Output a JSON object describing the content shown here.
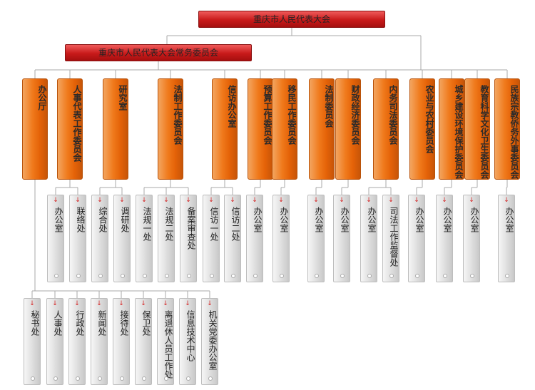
{
  "title": "重庆市人民代表大会",
  "standing_committee": "重庆市人民代表大会常务委员会",
  "colors": {
    "title_red": "#c81a1a",
    "orange": "#f07a1c",
    "gray": "#d6d6d6",
    "line": "#a8a8a8",
    "arrow": "#d42020"
  },
  "departments": [
    {
      "name": "办公厅",
      "subs": []
    },
    {
      "name": "人事代表工作委员会",
      "subs": [
        "办公室",
        "联络处"
      ]
    },
    {
      "name": "研究室",
      "subs": [
        "综合处",
        "调研处"
      ]
    },
    {
      "name": "法制工作委员会",
      "subs": [
        "法规一处",
        "法规二处",
        "备案审查处"
      ]
    },
    {
      "name": "信访办公室",
      "subs": [
        "信访一处",
        "信访二处"
      ]
    },
    {
      "name": "预算工作委员会",
      "subs": [
        "办公室"
      ]
    },
    {
      "name": "移民工作委员会",
      "subs": [
        "办公室"
      ]
    },
    {
      "name": "法制委员会",
      "subs": [
        "办公室"
      ]
    },
    {
      "name": "财政经济委员会",
      "subs": [
        "办公室"
      ]
    },
    {
      "name": "内务司法委员会",
      "subs": [
        "办公室",
        "司法工作监督处"
      ]
    },
    {
      "name": "农业与农村委员会",
      "subs": [
        "办公室"
      ]
    },
    {
      "name": "城乡建设环境保护委员会",
      "subs": [
        "办公室"
      ]
    },
    {
      "name": "教育科学文化卫生委员会",
      "subs": [
        "办公室"
      ]
    },
    {
      "name": "民族宗教侨务外事委员会",
      "subs": [
        "办公室"
      ]
    }
  ],
  "office_subs": [
    "秘书处",
    "人事处",
    "行政处",
    "新闻处",
    "接待处",
    "保卫处",
    "离退休人员工作处",
    "信息技术中心",
    "机关党委办公室"
  ]
}
